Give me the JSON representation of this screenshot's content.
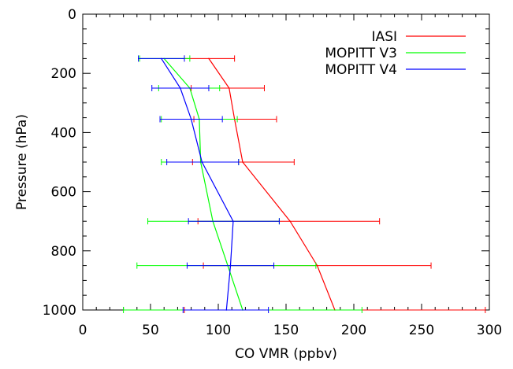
{
  "chart_data": {
    "type": "line",
    "title": "",
    "xlabel": "CO VMR (ppbv)",
    "ylabel": "Pressure (hPa)",
    "xlim": [
      0,
      300
    ],
    "ylim": [
      1000,
      0
    ],
    "y_inverted": true,
    "x_ticks": [
      0,
      50,
      100,
      150,
      200,
      250,
      300
    ],
    "y_ticks": [
      0,
      200,
      400,
      600,
      800,
      1000
    ],
    "grid": false,
    "legend_position": "top-right",
    "series": [
      {
        "name": "IASI",
        "color": "#ff0000",
        "points": [
          {
            "x": 93,
            "y": 150,
            "xmin": 75,
            "xmax": 112
          },
          {
            "x": 108,
            "y": 250,
            "xmin": 80,
            "xmax": 134
          },
          {
            "x": 112,
            "y": 355,
            "xmin": 82,
            "xmax": 143
          },
          {
            "x": 118,
            "y": 500,
            "xmin": 81,
            "xmax": 156
          },
          {
            "x": 153,
            "y": 700,
            "xmin": 85,
            "xmax": 219
          },
          {
            "x": 173,
            "y": 850,
            "xmin": 89,
            "xmax": 257
          },
          {
            "x": 186,
            "y": 1000,
            "xmin": 75,
            "xmax": 297
          }
        ]
      },
      {
        "name": "MOPITT V3",
        "color": "#00ff00",
        "points": [
          {
            "x": 60,
            "y": 150,
            "xmin": 42,
            "xmax": 79
          },
          {
            "x": 79,
            "y": 250,
            "xmin": 56,
            "xmax": 101
          },
          {
            "x": 86,
            "y": 355,
            "xmin": 58,
            "xmax": 114
          },
          {
            "x": 87,
            "y": 500,
            "xmin": 58,
            "xmax": 115
          },
          {
            "x": 96,
            "y": 700,
            "xmin": 48,
            "xmax": 145
          },
          {
            "x": 107,
            "y": 850,
            "xmin": 40,
            "xmax": 172
          },
          {
            "x": 118,
            "y": 1000,
            "xmin": 30,
            "xmax": 206
          }
        ]
      },
      {
        "name": "MOPITT V4",
        "color": "#0000ff",
        "points": [
          {
            "x": 58,
            "y": 150,
            "xmin": 41,
            "xmax": 75
          },
          {
            "x": 72,
            "y": 250,
            "xmin": 51,
            "xmax": 93
          },
          {
            "x": 80,
            "y": 355,
            "xmin": 57,
            "xmax": 103
          },
          {
            "x": 88,
            "y": 500,
            "xmin": 62,
            "xmax": 115
          },
          {
            "x": 111,
            "y": 700,
            "xmin": 78,
            "xmax": 145
          },
          {
            "x": 109,
            "y": 850,
            "xmin": 77,
            "xmax": 141
          },
          {
            "x": 106,
            "y": 1000,
            "xmin": 74,
            "xmax": 137
          }
        ]
      }
    ]
  }
}
